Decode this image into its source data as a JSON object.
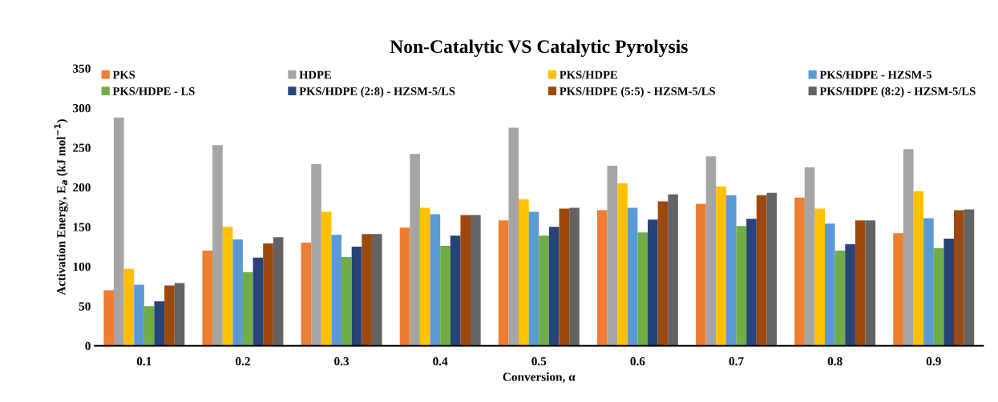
{
  "chart_data": {
    "type": "bar",
    "title": "Non-Catalytic VS Catalytic Pyrolysis",
    "xlabel": "Conversion, α",
    "ylabel": "Activation Energy, E$_{a}$ (kJ mol$^{−1}$)",
    "categories": [
      "0.1",
      "0.2",
      "0.3",
      "0.4",
      "0.5",
      "0.6",
      "0.7",
      "0.8",
      "0.9"
    ],
    "series": [
      {
        "name": "PKS",
        "color": "#ed7d31",
        "values": [
          70,
          120,
          130,
          149,
          158,
          171,
          179,
          187,
          142
        ]
      },
      {
        "name": "HDPE",
        "color": "#a5a5a5",
        "values": [
          288,
          253,
          229,
          242,
          275,
          227,
          239,
          225,
          248
        ]
      },
      {
        "name": "PKS/HDPE",
        "color": "#ffc000",
        "values": [
          97,
          150,
          169,
          174,
          185,
          205,
          201,
          173,
          195
        ]
      },
      {
        "name": "PKS/HDPE - HZSM-5",
        "color": "#5b9bd5",
        "values": [
          77,
          134,
          140,
          166,
          169,
          174,
          190,
          154,
          161
        ]
      },
      {
        "name": "PKS/HDPE - LS",
        "color": "#70ad47",
        "values": [
          50,
          93,
          112,
          126,
          139,
          143,
          151,
          120,
          123
        ]
      },
      {
        "name": "PKS/HDPE (2:8) - HZSM-5/LS",
        "color": "#264478",
        "values": [
          56,
          111,
          125,
          139,
          150,
          159,
          160,
          128,
          135
        ]
      },
      {
        "name": "PKS/HDPE (5:5) - HZSM-5/LS",
        "color": "#9e480e",
        "values": [
          76,
          129,
          141,
          165,
          173,
          182,
          190,
          158,
          171
        ]
      },
      {
        "name": "PKS/HDPE (8:2) - HZSM-5/LS",
        "color": "#636363",
        "values": [
          79,
          137,
          141,
          165,
          174,
          191,
          193,
          158,
          172
        ]
      }
    ],
    "ylim": [
      0,
      350
    ],
    "yticks": [
      0,
      50,
      100,
      150,
      200,
      250,
      300,
      350
    ],
    "grid": false,
    "legend": "top"
  }
}
